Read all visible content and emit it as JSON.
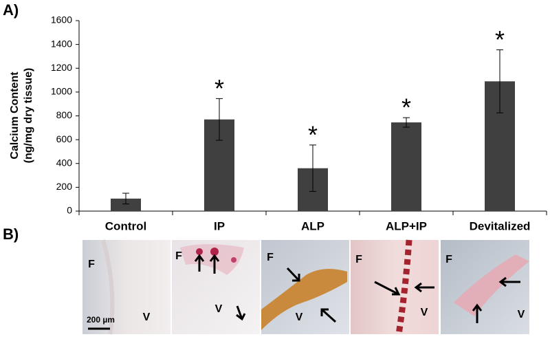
{
  "chart_data": {
    "type": "bar",
    "panel_label": "A)",
    "ylabel": [
      "Calcium Content",
      "(ng/mg dry tissue)"
    ],
    "categories": [
      "Control",
      "IP",
      "ALP",
      "ALP+IP",
      "Devitalized"
    ],
    "values": [
      105,
      770,
      360,
      745,
      1090
    ],
    "errors": [
      45,
      175,
      195,
      40,
      265
    ],
    "significance": [
      null,
      "*",
      "*",
      "*",
      "*"
    ],
    "color": "#404040",
    "ylim": [
      0,
      1600
    ],
    "yticks": [
      0,
      200,
      400,
      600,
      800,
      1000,
      1200,
      1400,
      1600
    ]
  },
  "panel_b": {
    "label": "B)",
    "scale_bar": "200 µm",
    "images": [
      {
        "labels": [
          "F",
          "V"
        ]
      },
      {
        "labels": [
          "F",
          "V"
        ]
      },
      {
        "labels": [
          "F",
          "V"
        ]
      },
      {
        "labels": [
          "F",
          "V"
        ]
      },
      {
        "labels": [
          "F",
          "V"
        ]
      }
    ]
  }
}
